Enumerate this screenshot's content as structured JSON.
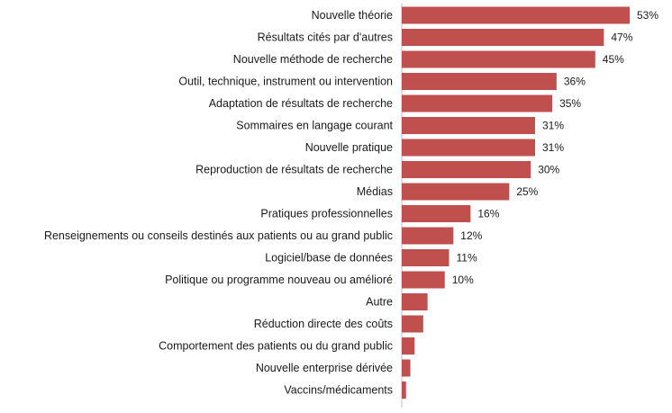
{
  "chart_data": {
    "type": "bar",
    "orientation": "horizontal",
    "bar_color": "#C0504D",
    "categories": [
      "Nouvelle théorie",
      "Résultats cités par d'autres",
      "Nouvelle méthode de recherche",
      "Outil, technique, instrument ou intervention",
      "Adaptation de résultats de recherche",
      "Sommaires en langage courant",
      "Nouvelle pratique",
      "Reproduction de résultats de recherche",
      "Médias",
      "Pratiques professionnelles",
      "Renseignements ou conseils destinés aux patients ou au grand public",
      "Logiciel/base de données",
      "Politique ou programme nouveau ou amélioré",
      "Autre",
      "Réduction directe des coûts",
      "Comportement des patients ou du grand public",
      "Nouvelle enterprise dérivée",
      "Vaccins/médicaments"
    ],
    "values": [
      53,
      47,
      45,
      36,
      35,
      31,
      31,
      30,
      25,
      16,
      12,
      11,
      10,
      6,
      5,
      3,
      2,
      1
    ],
    "value_labels": [
      "53%",
      "47%",
      "45%",
      "36%",
      "35%",
      "31%",
      "31%",
      "30%",
      "25%",
      "16%",
      "12%",
      "11%",
      "10%",
      "",
      "",
      "",
      "",
      ""
    ],
    "xlim": [
      0,
      53
    ],
    "title": "",
    "xlabel": "",
    "ylabel": "",
    "grid": false,
    "legend": "none"
  }
}
